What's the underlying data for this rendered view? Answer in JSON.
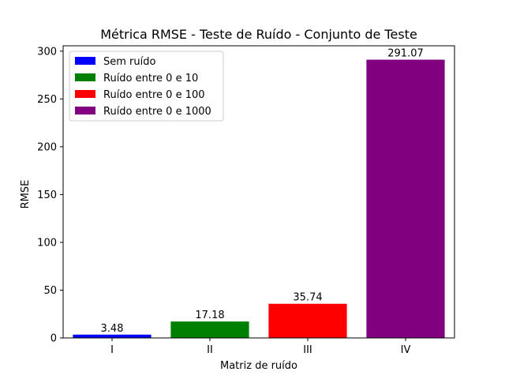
{
  "chart_data": {
    "type": "bar",
    "title": "Métrica RMSE - Teste de Ruído - Conjunto de Teste",
    "xlabel": "Matriz de ruído",
    "ylabel": "RMSE",
    "categories": [
      "I",
      "II",
      "III",
      "IV"
    ],
    "values": [
      3.48,
      17.18,
      35.74,
      291.07
    ],
    "data_labels": [
      "3.48",
      "17.18",
      "35.74",
      "291.07"
    ],
    "series_names": [
      "Sem ruído",
      "Ruído entre 0 e 10",
      "Ruído entre 0 e 100",
      "Ruído entre 0 e 1000"
    ],
    "colors": [
      "#0000ff",
      "#008000",
      "#ff0000",
      "#800080"
    ],
    "ylim": [
      0,
      305.6
    ],
    "yticks": [
      0,
      50,
      100,
      150,
      200,
      250,
      300
    ],
    "ytick_labels": [
      "0",
      "50",
      "100",
      "150",
      "200",
      "250",
      "300"
    ],
    "grid": false,
    "legend_position": "top-left"
  }
}
